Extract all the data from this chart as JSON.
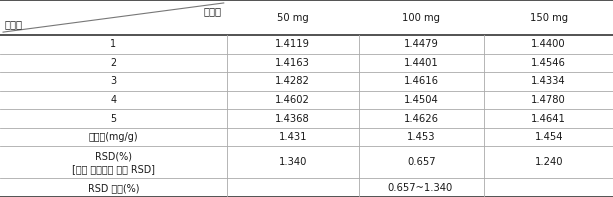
{
  "col_headers": [
    "50 mg",
    "100 mg",
    "150 mg"
  ],
  "row_label_col1": "반복수",
  "row_label_col2": "검체량",
  "rows": [
    {
      "label": "1",
      "values": [
        "1.4119",
        "1.4479",
        "1.4400"
      ],
      "tall": false
    },
    {
      "label": "2",
      "values": [
        "1.4163",
        "1.4401",
        "1.4546"
      ],
      "tall": false
    },
    {
      "label": "3",
      "values": [
        "1.4282",
        "1.4616",
        "1.4334"
      ],
      "tall": false
    },
    {
      "label": "4",
      "values": [
        "1.4602",
        "1.4504",
        "1.4780"
      ],
      "tall": false
    },
    {
      "label": "5",
      "values": [
        "1.4368",
        "1.4626",
        "1.4641"
      ],
      "tall": false
    },
    {
      "label": "분석값(mg/g)",
      "values": [
        "1.431",
        "1.453",
        "1.454"
      ],
      "tall": false
    },
    {
      "label": "RSD(%)\n[검체 측정값에 대한 RSD]",
      "values": [
        "1.340",
        "0.657",
        "1.240"
      ],
      "tall": true
    },
    {
      "label": "RSD 구간(%)",
      "values": [
        "",
        "0.657~1.340",
        ""
      ],
      "tall": false
    }
  ],
  "bg_color": "#ffffff",
  "text_color": "#1a1a1a",
  "line_color_thick": "#444444",
  "line_color_thin": "#aaaaaa",
  "font_size": 7.2
}
